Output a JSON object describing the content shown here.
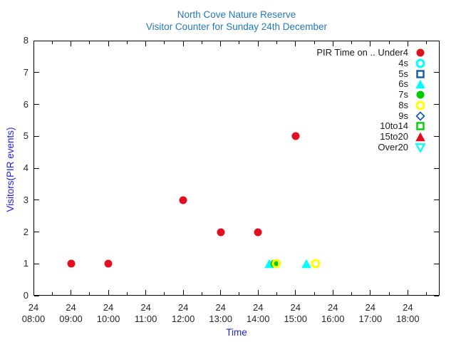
{
  "chart_data": {
    "type": "scatter",
    "title": "North Cove Nature Reserve",
    "subtitle": "Visitor Counter for Sunday 24th December",
    "xlabel": "Time",
    "ylabel": "Visitors(PIR events)",
    "grid": false,
    "legend_position": "top-right-inside",
    "x_axis": {
      "day_label": "24",
      "hour_ticks": [
        "08:00",
        "09:00",
        "10:00",
        "11:00",
        "12:00",
        "13:00",
        "14:00",
        "15:00",
        "16:00",
        "17:00",
        "18:00"
      ],
      "range_hours": [
        8.0,
        18.85
      ],
      "minor_tick_every_hours": 0.5
    },
    "y_axis": {
      "range": [
        0,
        8
      ],
      "ticks": [
        0,
        1,
        2,
        3,
        4,
        5,
        6,
        7,
        8
      ]
    },
    "series": [
      {
        "key": "under4",
        "label": "PIR Time on .. Under4",
        "marker": "circle-filled",
        "color": "#e01020",
        "points": [
          {
            "time": "09:00",
            "y": 1
          },
          {
            "time": "10:00",
            "y": 1
          },
          {
            "time": "12:00",
            "y": 3
          },
          {
            "time": "13:00",
            "y": 2
          },
          {
            "time": "14:00",
            "y": 2
          },
          {
            "time": "15:00",
            "y": 5
          }
        ]
      },
      {
        "key": "4s",
        "label": "4s",
        "marker": "circle-open",
        "color": "#00ffff",
        "points": []
      },
      {
        "key": "5s",
        "label": "5s",
        "marker": "square-open",
        "color": "#1458a8",
        "points": []
      },
      {
        "key": "6s",
        "label": "6s",
        "marker": "triangle-up-filled",
        "color": "#00ffff",
        "points": [
          {
            "time": "14:18",
            "y": 1
          },
          {
            "time": "15:17",
            "y": 1
          }
        ]
      },
      {
        "key": "7s",
        "label": "7s",
        "marker": "circle-filled",
        "color": "#00cc00",
        "points": [
          {
            "time": "14:26",
            "y": 1
          }
        ]
      },
      {
        "key": "8s",
        "label": "8s",
        "marker": "circle-open",
        "color": "#ffff00",
        "points": [
          {
            "time": "14:30",
            "y": 1
          },
          {
            "time": "15:32",
            "y": 1
          }
        ]
      },
      {
        "key": "9s",
        "label": "9s",
        "marker": "diamond-open",
        "color": "#1a55b0",
        "points": []
      },
      {
        "key": "10to14",
        "label": "10to14",
        "marker": "square-open",
        "color": "#00cc00",
        "points": []
      },
      {
        "key": "15to20",
        "label": "15to20",
        "marker": "triangle-up-filled",
        "color": "#e01020",
        "points": []
      },
      {
        "key": "over20",
        "label": "Over20",
        "marker": "triangle-down-open",
        "color": "#00ffff",
        "points": []
      }
    ],
    "colors": {
      "title_text": "#2478b8",
      "axis_label_text": "#2222dd",
      "tick_text": "#262626",
      "border": "#000000",
      "background": "#ffffff"
    }
  }
}
